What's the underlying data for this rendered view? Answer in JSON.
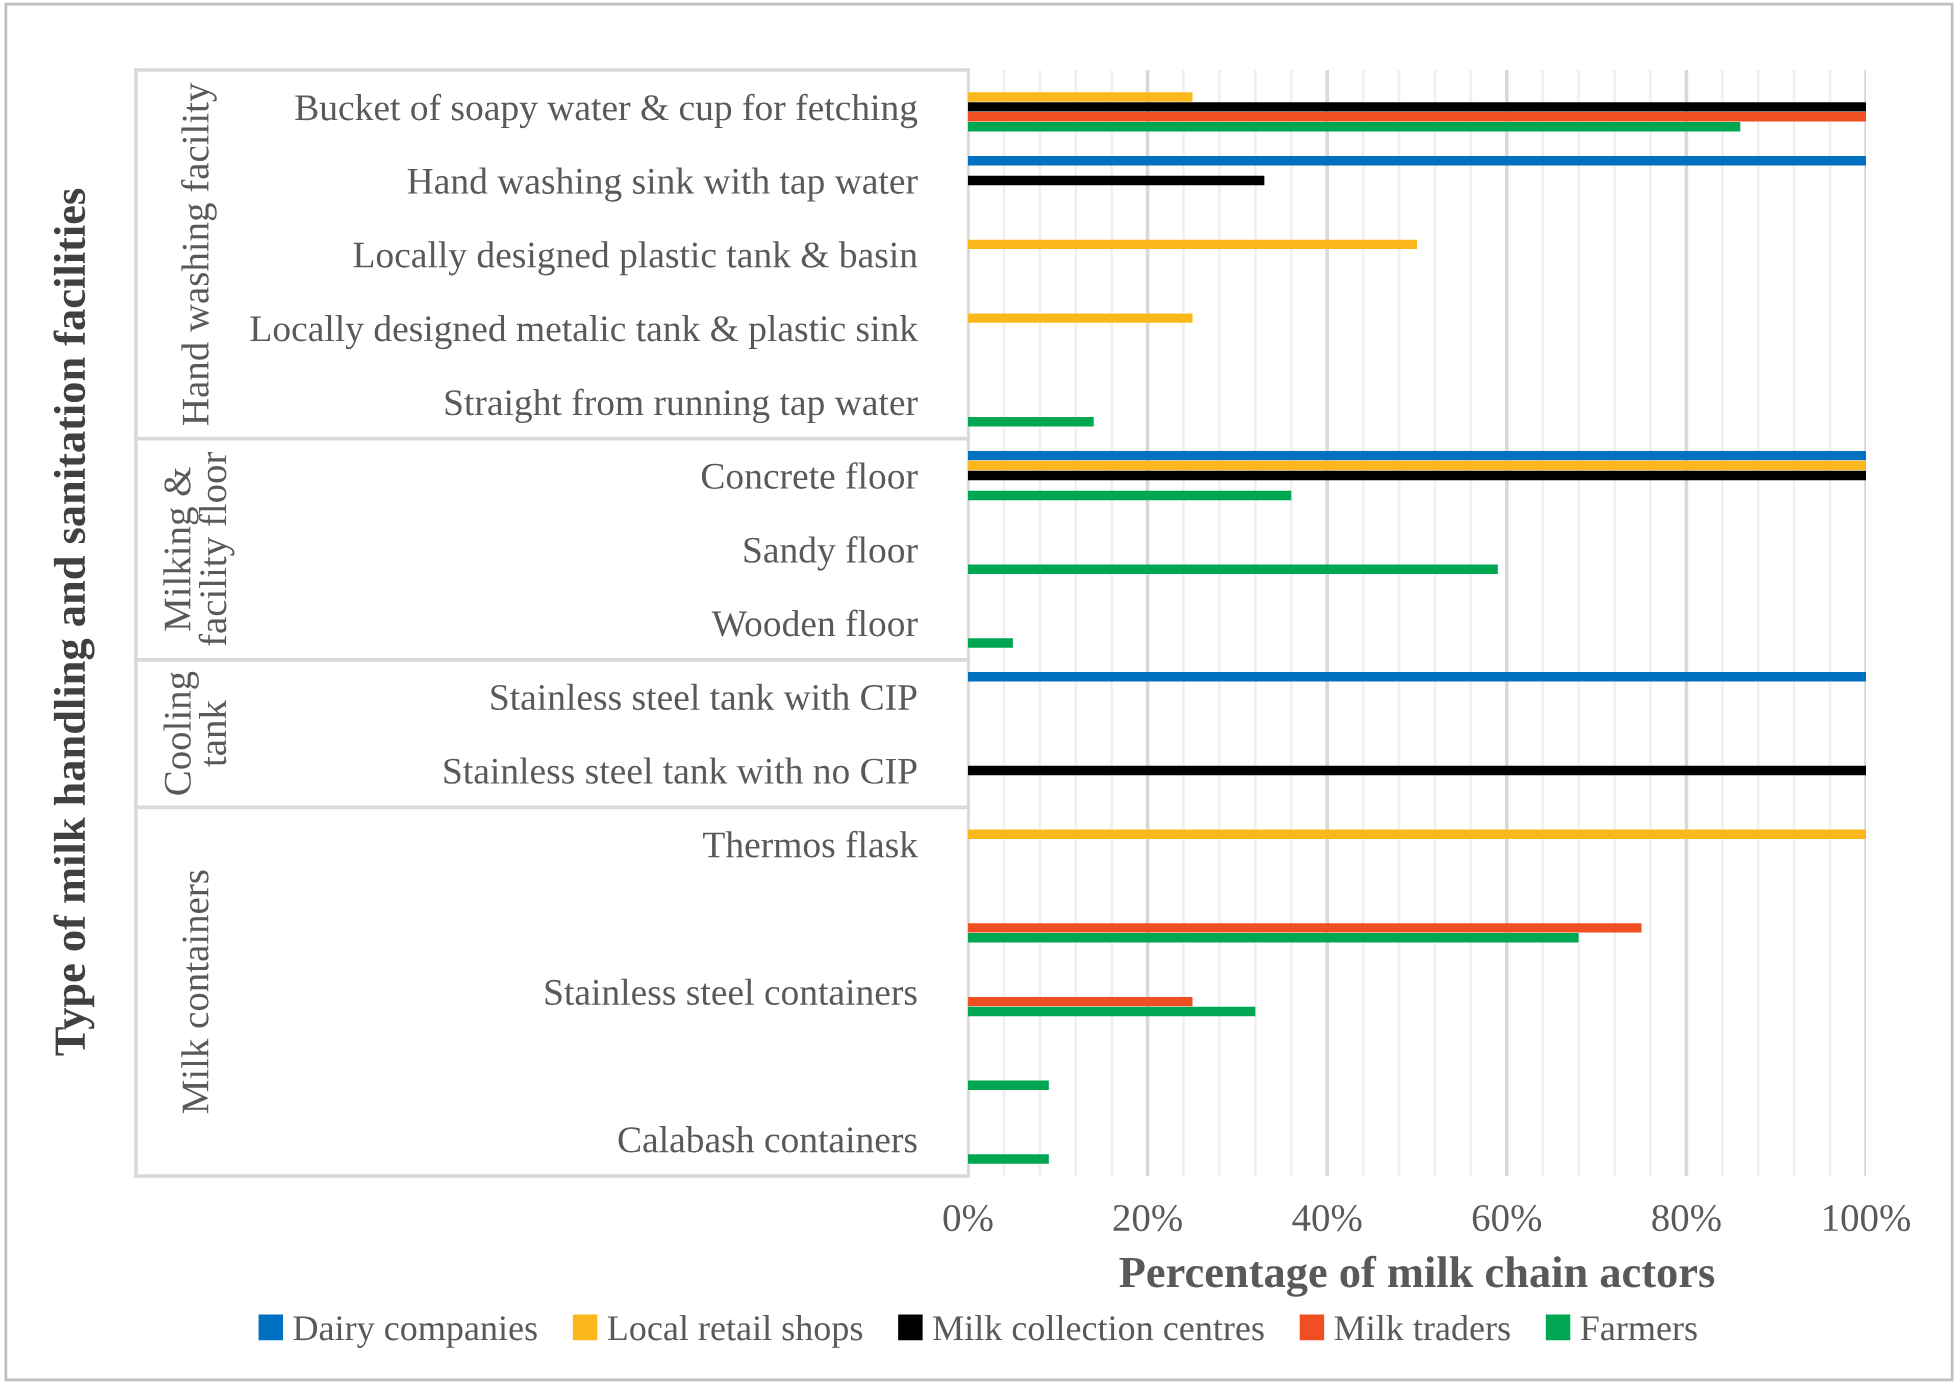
{
  "chart_data": {
    "type": "bar",
    "orientation": "horizontal",
    "xlabel": "Percentage of milk chain actors",
    "ylabel": "Type of milk handling and sanitation facilities",
    "categories": [
      "Bucket of soapy water & cup for fetching",
      "Hand washing sink with tap water",
      "Locally designed plastic tank & basin",
      "Locally designed metalic tank & plastic sink",
      "Straight from running tap water",
      "Concrete floor",
      "Sandy floor",
      "Wooden floor",
      "Stainless steel tank with CIP",
      "Stainless steel tank with no CIP",
      "Thermos flask",
      null,
      "Stainless steel containers",
      null,
      "Calabash containers"
    ],
    "annotations": [
      "Hand washing facility",
      "Milking &\nfacility floor",
      "Cooling\ntank",
      "Milk containers"
    ],
    "series": [
      {
        "name": "Dairy companies",
        "color": "#0070c0",
        "values": [
          null,
          100,
          null,
          null,
          null,
          100,
          null,
          null,
          100,
          null,
          null,
          null,
          null,
          null,
          null
        ]
      },
      {
        "name": "Local retail shops",
        "color": "#fbb81c",
        "values": [
          25,
          null,
          50,
          25,
          null,
          100,
          null,
          null,
          null,
          null,
          100,
          null,
          null,
          null,
          null
        ]
      },
      {
        "name": "Milk collection centres",
        "color": "#000000",
        "values": [
          100,
          33,
          null,
          null,
          null,
          100,
          null,
          null,
          null,
          100,
          null,
          null,
          null,
          null,
          null
        ]
      },
      {
        "name": "Milk traders",
        "color": "#f04e23",
        "values": [
          100,
          null,
          null,
          null,
          null,
          null,
          null,
          null,
          null,
          null,
          null,
          75,
          25,
          null,
          null
        ]
      },
      {
        "name": "Farmers",
        "color": "#00a651",
        "values": [
          86,
          null,
          null,
          null,
          14,
          36,
          59,
          5,
          null,
          null,
          null,
          68,
          32,
          9,
          9
        ]
      }
    ],
    "xlim": [
      0,
      100
    ],
    "xticks": [
      {
        "value": 0,
        "label": "0%"
      },
      {
        "value": 4,
        "label": null
      },
      {
        "value": 8,
        "label": null
      },
      {
        "value": 12,
        "label": null
      },
      {
        "value": 16,
        "label": null
      },
      {
        "value": 20,
        "label": "20%"
      },
      {
        "value": 24,
        "label": null
      },
      {
        "value": 28,
        "label": null
      },
      {
        "value": 32,
        "label": null
      },
      {
        "value": 36,
        "label": null
      },
      {
        "value": 40,
        "label": "40%"
      },
      {
        "value": 44,
        "label": null
      },
      {
        "value": 48,
        "label": null
      },
      {
        "value": 52,
        "label": null
      },
      {
        "value": 56,
        "label": null
      },
      {
        "value": 60,
        "label": "60%"
      },
      {
        "value": 64,
        "label": null
      },
      {
        "value": 68,
        "label": null
      },
      {
        "value": 72,
        "label": null
      },
      {
        "value": 76,
        "label": null
      },
      {
        "value": 80,
        "label": "80%"
      },
      {
        "value": 84,
        "label": null
      },
      {
        "value": 88,
        "label": null
      },
      {
        "value": 92,
        "label": null
      },
      {
        "value": 96,
        "label": null
      },
      {
        "value": 100,
        "label": "100%"
      }
    ],
    "grid": "x",
    "legend": "bottom"
  }
}
